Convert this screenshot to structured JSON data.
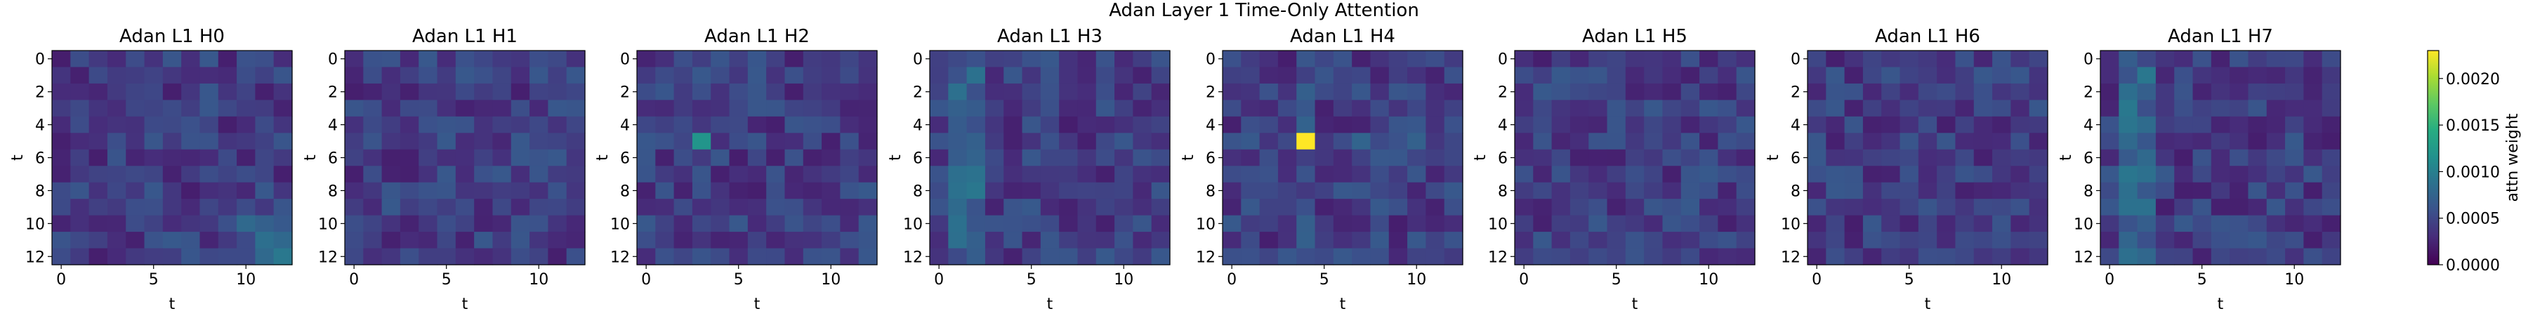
{
  "chart_data": {
    "type": "heatmap",
    "suptitle": "Adan Layer 1 Time-Only Attention",
    "panels": [
      {
        "title": "Adan L1 H0",
        "xlabel": "t",
        "ylabel": "t"
      },
      {
        "title": "Adan L1 H1",
        "xlabel": "t",
        "ylabel": "t"
      },
      {
        "title": "Adan L1 H2",
        "xlabel": "t",
        "ylabel": "t"
      },
      {
        "title": "Adan L1 H3",
        "xlabel": "t",
        "ylabel": "t"
      },
      {
        "title": "Adan L1 H4",
        "xlabel": "t",
        "ylabel": "t"
      },
      {
        "title": "Adan L1 H5",
        "xlabel": "t",
        "ylabel": "t"
      },
      {
        "title": "Adan L1 H6",
        "xlabel": "t",
        "ylabel": "t"
      },
      {
        "title": "Adan L1 H7",
        "xlabel": "t",
        "ylabel": "t"
      }
    ],
    "grid_size": 13,
    "x_ticks": [
      0,
      5,
      10
    ],
    "y_ticks": [
      0,
      2,
      4,
      6,
      8,
      10,
      12
    ],
    "colormap": "viridis",
    "colorbar": {
      "label": "attn weight",
      "vmin": 0.0,
      "vmax": 0.0023,
      "ticks": [
        "0.0000",
        "0.0005",
        "0.0010",
        "0.0015",
        "0.0020"
      ]
    },
    "notable_cells": [
      {
        "panel": 2,
        "row": 5,
        "col": 3,
        "value": 0.0012
      },
      {
        "panel": 4,
        "row": 5,
        "col": 4,
        "value": 0.0023
      }
    ],
    "typical_range": [
      0.0002,
      0.0008
    ]
  }
}
